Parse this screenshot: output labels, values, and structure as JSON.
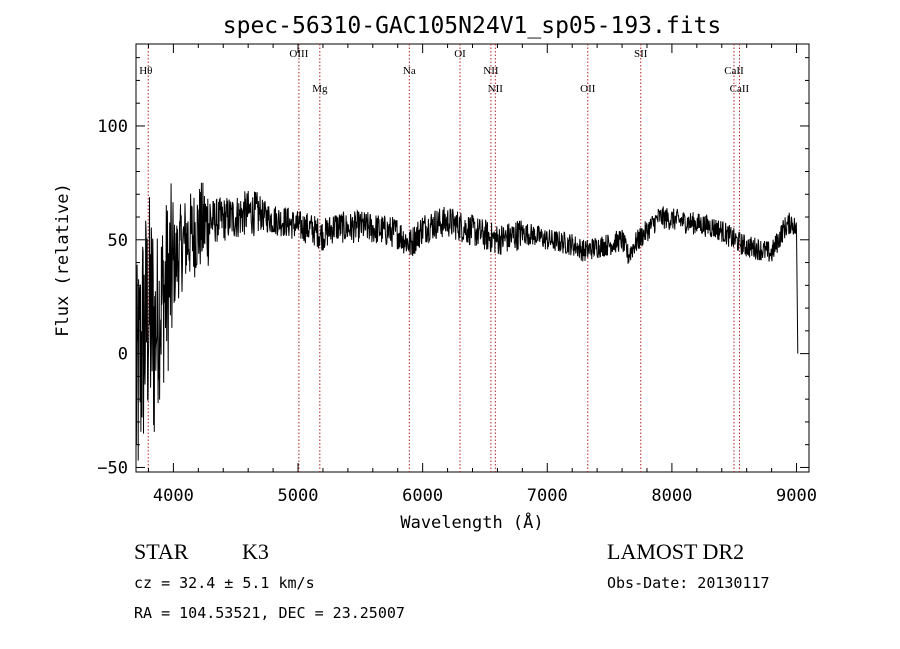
{
  "chart_data": {
    "type": "line",
    "title": "spec-56310-GAC105N24V1_sp05-193.fits",
    "xlabel": "Wavelength (Å)",
    "ylabel": "Flux (relative)",
    "xlim": [
      3700,
      9100
    ],
    "ylim": [
      -52,
      136
    ],
    "x_ticks": [
      4000,
      5000,
      6000,
      7000,
      8000,
      9000
    ],
    "x_tick_labels": [
      "4000",
      "5000",
      "6000",
      "7000",
      "8000",
      "9000"
    ],
    "y_ticks": [
      -50,
      0,
      50,
      100
    ],
    "y_tick_labels": [
      "−50",
      "0",
      "50",
      "100"
    ],
    "continuum": [
      [
        3700,
        -20
      ],
      [
        3750,
        5
      ],
      [
        3800,
        18
      ],
      [
        3850,
        10
      ],
      [
        3900,
        22
      ],
      [
        3950,
        30
      ],
      [
        4000,
        38
      ],
      [
        4050,
        45
      ],
      [
        4100,
        50
      ],
      [
        4150,
        52
      ],
      [
        4200,
        55
      ],
      [
        4300,
        58
      ],
      [
        4400,
        59
      ],
      [
        4500,
        60
      ],
      [
        4600,
        62
      ],
      [
        4700,
        61
      ],
      [
        4800,
        59
      ],
      [
        4900,
        58
      ],
      [
        5000,
        56
      ],
      [
        5100,
        55
      ],
      [
        5200,
        52
      ],
      [
        5300,
        56
      ],
      [
        5400,
        55
      ],
      [
        5500,
        56
      ],
      [
        5600,
        55
      ],
      [
        5700,
        54
      ],
      [
        5800,
        53
      ],
      [
        5900,
        48
      ],
      [
        6000,
        55
      ],
      [
        6100,
        57
      ],
      [
        6200,
        58
      ],
      [
        6300,
        56
      ],
      [
        6400,
        54
      ],
      [
        6500,
        52
      ],
      [
        6600,
        50
      ],
      [
        6700,
        51
      ],
      [
        6800,
        53
      ],
      [
        6900,
        52
      ],
      [
        7000,
        50
      ],
      [
        7100,
        49
      ],
      [
        7200,
        48
      ],
      [
        7300,
        45
      ],
      [
        7400,
        47
      ],
      [
        7500,
        48
      ],
      [
        7600,
        50
      ],
      [
        7650,
        43
      ],
      [
        7700,
        48
      ],
      [
        7800,
        54
      ],
      [
        7900,
        60
      ],
      [
        8000,
        59
      ],
      [
        8100,
        58
      ],
      [
        8200,
        57
      ],
      [
        8300,
        56
      ],
      [
        8400,
        54
      ],
      [
        8500,
        50
      ],
      [
        8600,
        47
      ],
      [
        8700,
        46
      ],
      [
        8800,
        44
      ],
      [
        8900,
        55
      ],
      [
        8960,
        58
      ],
      [
        9000,
        54
      ]
    ],
    "final_drop": [
      [
        9000,
        54
      ],
      [
        9010,
        0
      ]
    ],
    "lines": [
      {
        "label": "Hθ",
        "wavelength": 3798
      },
      {
        "label": "OIII",
        "wavelength": 5007
      },
      {
        "label": "Mg",
        "wavelength": 5175
      },
      {
        "label": "Na",
        "wavelength": 5893
      },
      {
        "label": "OI",
        "wavelength": 6300
      },
      {
        "label": "NII",
        "wavelength": 6548
      },
      {
        "label": "NII",
        "wavelength": 6583
      },
      {
        "label": "OII",
        "wavelength": 7325
      },
      {
        "label": "SII",
        "wavelength": 7750
      },
      {
        "label": "CaII",
        "wavelength": 8498
      },
      {
        "label": "CaII",
        "wavelength": 8542
      }
    ],
    "line_color": "#000000",
    "marker_color": "#b22222"
  },
  "info": {
    "object_type": "STAR",
    "subclass": "K3",
    "survey": "LAMOST DR2",
    "redshift": "cz = 32.4 ± 5.1 km/s",
    "obs_date": "Obs-Date: 20130117",
    "coords": "RA = 104.53521, DEC =  23.25007"
  }
}
